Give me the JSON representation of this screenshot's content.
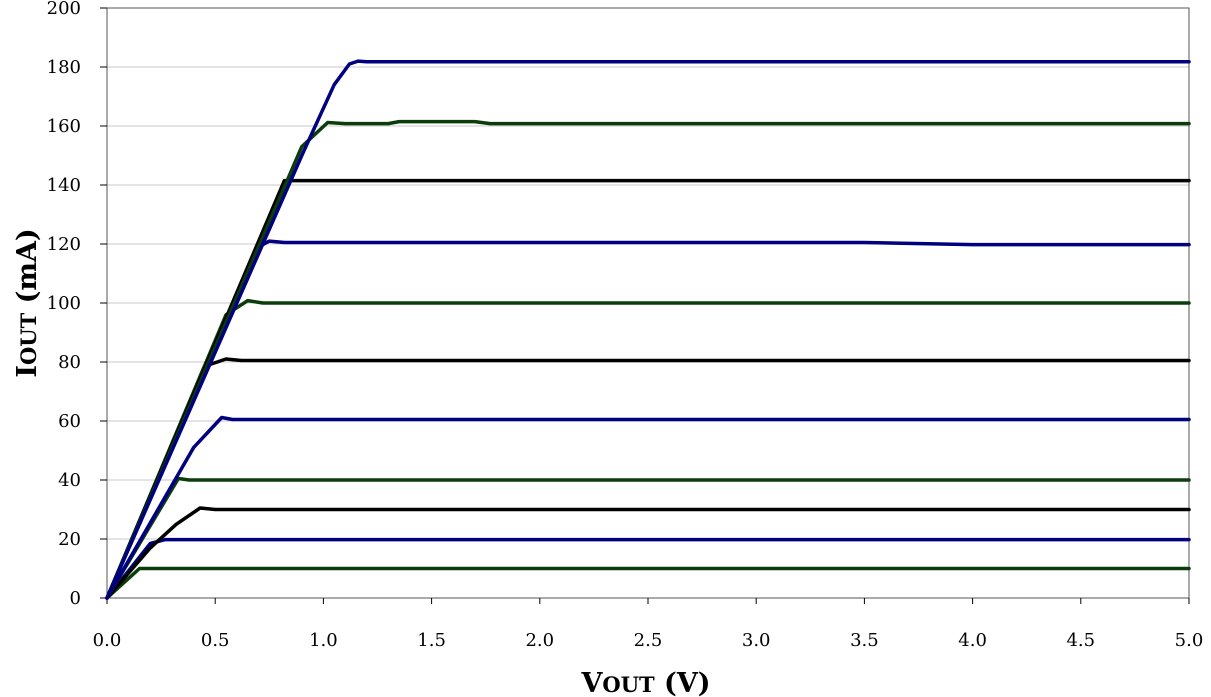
{
  "chart_data": {
    "type": "line",
    "xlabel": {
      "main": "V",
      "sub": "OUT",
      "unit": " (V)"
    },
    "ylabel": {
      "main": "I",
      "sub": "OUT",
      "unit": " (mA)"
    },
    "xlim": [
      0,
      5
    ],
    "ylim": [
      0,
      200
    ],
    "xticks": [
      "0.0",
      "0.5",
      "1.0",
      "1.5",
      "2.0",
      "2.5",
      "3.0",
      "3.5",
      "4.0",
      "4.5",
      "5.0"
    ],
    "yticks": [
      "0",
      "20",
      "40",
      "60",
      "80",
      "100",
      "120",
      "140",
      "160",
      "180",
      "200"
    ],
    "grid": "horizontal",
    "legend": "none",
    "colors": {
      "blue": "#000080",
      "green": "#0b3d0b",
      "black": "#000000"
    },
    "series": [
      {
        "color": "#0b3d0b",
        "points": [
          [
            0,
            0
          ],
          [
            0.15,
            10
          ],
          [
            5,
            10
          ]
        ]
      },
      {
        "color": "#000080",
        "points": [
          [
            0,
            0
          ],
          [
            0.2,
            18.5
          ],
          [
            0.27,
            19.8
          ],
          [
            5,
            19.8
          ]
        ]
      },
      {
        "color": "#000000",
        "points": [
          [
            0,
            0
          ],
          [
            0.2,
            17
          ],
          [
            0.32,
            25
          ],
          [
            0.43,
            30.5
          ],
          [
            0.5,
            30
          ],
          [
            5,
            30
          ]
        ]
      },
      {
        "color": "#0b3d0b",
        "points": [
          [
            0,
            0
          ],
          [
            0.33,
            40.5
          ],
          [
            0.38,
            40
          ],
          [
            5,
            40
          ]
        ]
      },
      {
        "color": "#000080",
        "points": [
          [
            0,
            0
          ],
          [
            0.4,
            51
          ],
          [
            0.53,
            61.2
          ],
          [
            0.58,
            60.5
          ],
          [
            5,
            60.5
          ]
        ]
      },
      {
        "color": "#000000",
        "points": [
          [
            0,
            0
          ],
          [
            0.45,
            78.5
          ],
          [
            0.55,
            81
          ],
          [
            0.62,
            80.5
          ],
          [
            5,
            80.5
          ]
        ]
      },
      {
        "color": "#0b3d0b",
        "points": [
          [
            0,
            0
          ],
          [
            0.55,
            96
          ],
          [
            0.65,
            100.8
          ],
          [
            0.72,
            100
          ],
          [
            5,
            100
          ]
        ]
      },
      {
        "color": "#000080",
        "points": [
          [
            0,
            0
          ],
          [
            0.7,
            119
          ],
          [
            0.75,
            121
          ],
          [
            0.82,
            120.5
          ],
          [
            3.5,
            120.5
          ],
          [
            4,
            119.8
          ],
          [
            5,
            119.8
          ]
        ]
      },
      {
        "color": "#000000",
        "points": [
          [
            0,
            0
          ],
          [
            0.82,
            141.5
          ],
          [
            5,
            141.5
          ]
        ]
      },
      {
        "color": "#0b3d0b",
        "points": [
          [
            0,
            0
          ],
          [
            0.9,
            153
          ],
          [
            1.02,
            161.2
          ],
          [
            1.1,
            160.8
          ],
          [
            1.3,
            160.8
          ],
          [
            1.35,
            161.5
          ],
          [
            1.7,
            161.5
          ],
          [
            1.77,
            160.8
          ],
          [
            5,
            160.8
          ]
        ]
      },
      {
        "color": "#000080",
        "points": [
          [
            0,
            0
          ],
          [
            0.9,
            150
          ],
          [
            1.05,
            174
          ],
          [
            1.12,
            181
          ],
          [
            1.16,
            182
          ],
          [
            1.2,
            181.8
          ],
          [
            5,
            181.8
          ]
        ]
      }
    ]
  }
}
